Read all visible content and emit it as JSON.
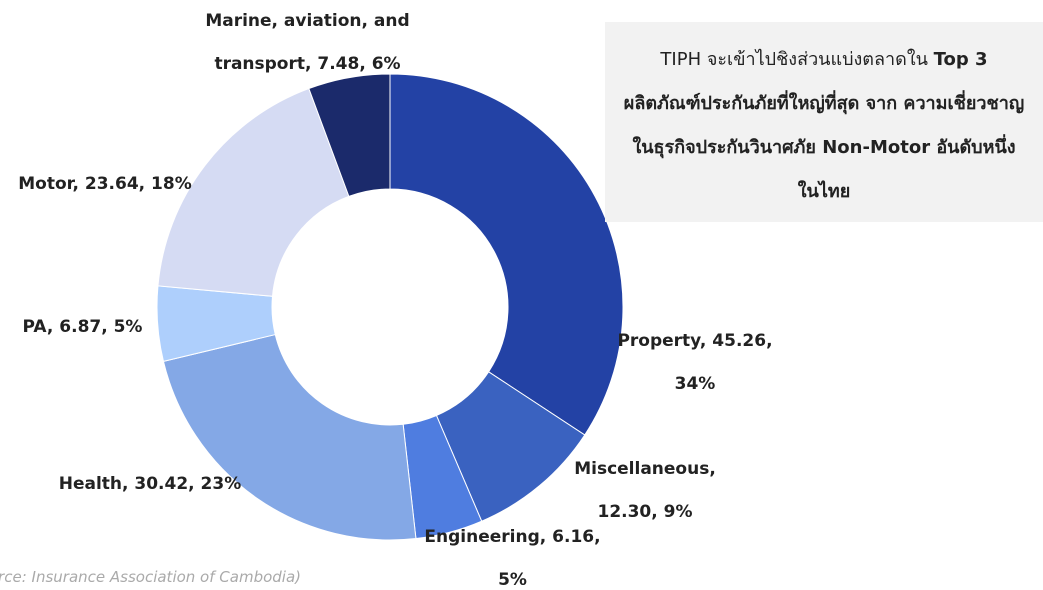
{
  "chart_data": {
    "type": "donut",
    "categories": [
      "Property",
      "Miscellaneous",
      "Engineering",
      "Health",
      "PA",
      "Motor",
      "Marine, aviation, and transport"
    ],
    "values": [
      45.26,
      12.3,
      6.16,
      30.42,
      6.87,
      23.64,
      7.48
    ],
    "value_labels": [
      "Property, 45.26, 34%",
      "Miscellaneous, 12.30, 9%",
      "Engineering, 6.16, 5%",
      "Health, 30.42, 23%",
      "PA, 6.87, 5%",
      "Motor, 23.64, 18%",
      "Marine, aviation, and transport, 7.48, 6%"
    ],
    "colors": [
      "#2342a5",
      "#3a62c0",
      "#4f7de0",
      "#84a8e6",
      "#aecffc",
      "#d5dbf3",
      "#1b2a6b"
    ],
    "annotation": {
      "normal": "TIPH จะเข้าไปชิงส่วนแบ่งตลาดใน ",
      "bold": "Top 3 ผลิตภัณฑ์ประกันภัยที่ใหญ่ที่สุด จาก ความเชี่ยวชาญในธุรกิจประกันวินาศภัย Non-Motor อันดับหนึ่งในไทย"
    },
    "source": "(Source: Insurance Association of Cambodia)"
  }
}
